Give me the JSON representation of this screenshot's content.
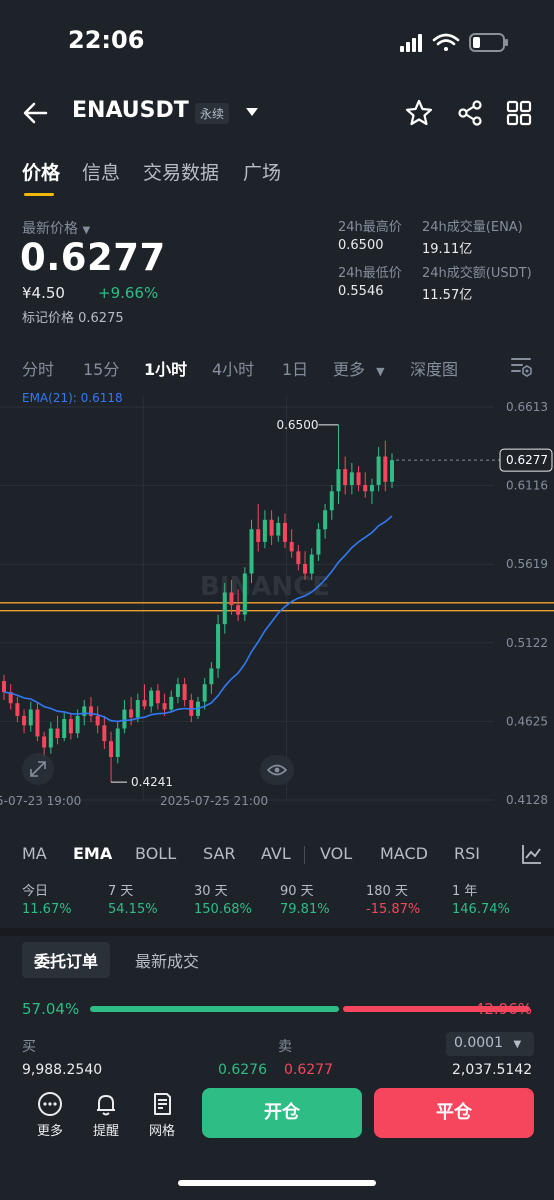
{
  "status": {
    "time": "22:06"
  },
  "header": {
    "pair": "ENAUSDT",
    "badge": "永续"
  },
  "tabs": [
    "价格",
    "信息",
    "交易数据",
    "广场"
  ],
  "price": {
    "label": "最新价格",
    "last": "0.6277",
    "cny": "¥4.50",
    "change": "+9.66%",
    "mark": "标记价格 0.6275"
  },
  "stats": {
    "high_label": "24h最高价",
    "high": "0.6500",
    "low_label": "24h最低价",
    "low": "0.5546",
    "vol_label": "24h成交量(ENA)",
    "vol": "19.11亿",
    "amt_label": "24h成交额(USDT)",
    "amt": "11.57亿"
  },
  "intervals": [
    "分时",
    "15分",
    "1小时",
    "4小时",
    "1日",
    "更多",
    "深度图"
  ],
  "chart": {
    "ema_label": "EMA(21): 0.6118",
    "y_ticks": [
      "0.6613",
      "0.6116",
      "0.5619",
      "0.5122",
      "0.4625",
      "0.4128"
    ],
    "x_labels": [
      "5-07-23 19:00",
      "2025-07-25 21:00"
    ],
    "high_marker": "0.6500",
    "low_marker": "0.4241",
    "current": "0.6277",
    "watermark": "BINANCE"
  },
  "chart_data": {
    "type": "candlestick",
    "ylim": [
      0.4128,
      0.6613
    ],
    "y_ticks": [
      0.6613,
      0.6116,
      0.5619,
      0.5122,
      0.4625,
      0.4128
    ],
    "x_labels": [
      "5-07-23 19:00",
      "2025-07-25 21:00"
    ],
    "ema_name": "EMA(21): 0.6118",
    "horizontal_lines": [
      0.5375,
      0.5325
    ],
    "current_price": 0.6277,
    "high": 0.65,
    "low": 0.4241,
    "candles": [
      [
        0.488,
        0.492,
        0.476,
        0.481
      ],
      [
        0.481,
        0.486,
        0.47,
        0.474
      ],
      [
        0.474,
        0.478,
        0.462,
        0.466
      ],
      [
        0.466,
        0.47,
        0.455,
        0.46
      ],
      [
        0.46,
        0.475,
        0.456,
        0.47
      ],
      [
        0.47,
        0.474,
        0.45,
        0.453
      ],
      [
        0.453,
        0.456,
        0.44,
        0.446
      ],
      [
        0.446,
        0.462,
        0.442,
        0.458
      ],
      [
        0.458,
        0.466,
        0.448,
        0.452
      ],
      [
        0.452,
        0.468,
        0.45,
        0.464
      ],
      [
        0.464,
        0.468,
        0.451,
        0.455
      ],
      [
        0.455,
        0.47,
        0.452,
        0.466
      ],
      [
        0.466,
        0.476,
        0.46,
        0.472
      ],
      [
        0.472,
        0.478,
        0.462,
        0.466
      ],
      [
        0.466,
        0.472,
        0.455,
        0.46
      ],
      [
        0.46,
        0.466,
        0.445,
        0.45
      ],
      [
        0.45,
        0.456,
        0.424,
        0.44
      ],
      [
        0.44,
        0.462,
        0.436,
        0.458
      ],
      [
        0.458,
        0.476,
        0.455,
        0.47
      ],
      [
        0.47,
        0.478,
        0.46,
        0.465
      ],
      [
        0.465,
        0.48,
        0.462,
        0.476
      ],
      [
        0.476,
        0.486,
        0.47,
        0.472
      ],
      [
        0.472,
        0.484,
        0.468,
        0.482
      ],
      [
        0.482,
        0.486,
        0.47,
        0.474
      ],
      [
        0.474,
        0.48,
        0.466,
        0.47
      ],
      [
        0.47,
        0.482,
        0.468,
        0.478
      ],
      [
        0.478,
        0.49,
        0.474,
        0.486
      ],
      [
        0.486,
        0.49,
        0.472,
        0.476
      ],
      [
        0.476,
        0.48,
        0.462,
        0.466
      ],
      [
        0.466,
        0.478,
        0.464,
        0.475
      ],
      [
        0.475,
        0.49,
        0.47,
        0.486
      ],
      [
        0.486,
        0.5,
        0.48,
        0.496
      ],
      [
        0.496,
        0.53,
        0.49,
        0.524
      ],
      [
        0.524,
        0.55,
        0.518,
        0.544
      ],
      [
        0.544,
        0.552,
        0.53,
        0.536
      ],
      [
        0.536,
        0.546,
        0.526,
        0.53
      ],
      [
        0.53,
        0.56,
        0.526,
        0.556
      ],
      [
        0.556,
        0.59,
        0.55,
        0.584
      ],
      [
        0.584,
        0.6,
        0.57,
        0.576
      ],
      [
        0.576,
        0.596,
        0.572,
        0.59
      ],
      [
        0.59,
        0.596,
        0.574,
        0.58
      ],
      [
        0.58,
        0.592,
        0.576,
        0.588
      ],
      [
        0.588,
        0.594,
        0.572,
        0.576
      ],
      [
        0.576,
        0.584,
        0.566,
        0.57
      ],
      [
        0.57,
        0.574,
        0.558,
        0.562
      ],
      [
        0.562,
        0.57,
        0.552,
        0.556
      ],
      [
        0.556,
        0.572,
        0.552,
        0.568
      ],
      [
        0.568,
        0.588,
        0.564,
        0.584
      ],
      [
        0.584,
        0.6,
        0.578,
        0.596
      ],
      [
        0.596,
        0.612,
        0.59,
        0.608
      ],
      [
        0.608,
        0.65,
        0.6,
        0.622
      ],
      [
        0.622,
        0.63,
        0.606,
        0.612
      ],
      [
        0.612,
        0.626,
        0.606,
        0.62
      ],
      [
        0.62,
        0.624,
        0.608,
        0.612
      ],
      [
        0.612,
        0.62,
        0.604,
        0.608
      ],
      [
        0.608,
        0.616,
        0.6,
        0.612
      ],
      [
        0.612,
        0.636,
        0.608,
        0.63
      ],
      [
        0.63,
        0.64,
        0.608,
        0.614
      ],
      [
        0.614,
        0.632,
        0.61,
        0.6277
      ]
    ]
  },
  "indicators": [
    "MA",
    "EMA",
    "BOLL",
    "SAR",
    "AVL",
    "VOL",
    "MACD",
    "RSI"
  ],
  "performance": [
    {
      "label": "今日",
      "value": "11.67%",
      "color": "green"
    },
    {
      "label": "7 天",
      "value": "54.15%",
      "color": "green"
    },
    {
      "label": "30 天",
      "value": "150.68%",
      "color": "green"
    },
    {
      "label": "90 天",
      "value": "79.81%",
      "color": "green"
    },
    {
      "label": "180 天",
      "value": "-15.87%",
      "color": "red"
    },
    {
      "label": "1 年",
      "value": "146.74%",
      "color": "green"
    }
  ],
  "orderbook": {
    "tab_orders": "委托订单",
    "tab_trades": "最新成交",
    "buy_pct": "57.04%",
    "sell_pct": "42.96%",
    "buy_ratio": 0.5704,
    "buy_label": "买",
    "sell_label": "卖",
    "precision": "0.0001",
    "row": {
      "buy_qty": "9,988.2540",
      "buy_price": "0.6276",
      "sell_price": "0.6277",
      "sell_qty": "2,037.5142"
    }
  },
  "bottom": {
    "more": "更多",
    "alert": "提醒",
    "grid": "网格",
    "open": "开仓",
    "close": "平仓"
  },
  "colors": {
    "up": "#2ebd85",
    "down": "#f6465d",
    "ema": "#3179f5",
    "hline": "#f0a030",
    "accent": "#f0b90b"
  }
}
